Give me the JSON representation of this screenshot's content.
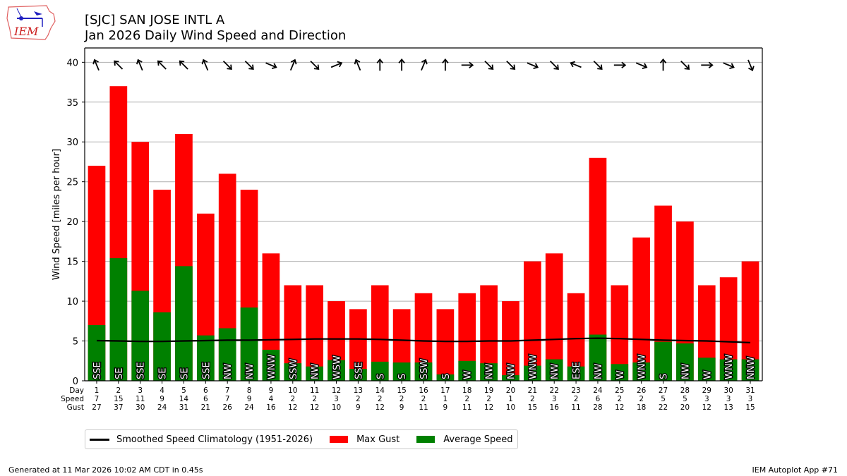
{
  "header": {
    "logo_text": "IEM",
    "title_line1": "[SJC] SAN JOSE INTL A",
    "title_line2": "Jan 2026 Daily Wind Speed and Direction"
  },
  "footer": {
    "generated": "Generated at 11 Mar 2026 10:02 AM CDT in 0.45s",
    "app": "IEM Autoplot App #71"
  },
  "legend": {
    "climatology": "Smoothed Speed Climatology (1951-2026)",
    "gust": "Max Gust",
    "average": "Average Speed"
  },
  "colors": {
    "gust": "#ff0000",
    "average": "#008000",
    "climatology": "#000000",
    "grid": "#b0b0b0"
  },
  "chart_data": {
    "type": "bar",
    "title": "[SJC] SAN JOSE INTL A Jan 2026 Daily Wind Speed and Direction",
    "xlabel": "",
    "ylabel": "Wind Speed [miles per hour]",
    "ylim": [
      0,
      41.8
    ],
    "yticks": [
      0,
      5,
      10,
      15,
      20,
      25,
      30,
      35,
      40
    ],
    "grid": true,
    "legend_position": "bottom",
    "row_labels": [
      "Day",
      "Speed",
      "Gust"
    ],
    "days": [
      1,
      2,
      3,
      4,
      5,
      6,
      7,
      8,
      9,
      10,
      11,
      12,
      13,
      14,
      15,
      16,
      17,
      18,
      19,
      20,
      21,
      22,
      23,
      24,
      25,
      26,
      27,
      28,
      29,
      30,
      31
    ],
    "speed_labels": [
      7,
      15,
      11,
      9,
      14,
      6,
      7,
      9,
      4,
      2,
      2,
      3,
      2,
      2,
      2,
      2,
      1,
      2,
      2,
      1,
      2,
      3,
      2,
      6,
      2,
      2,
      5,
      5,
      3,
      3,
      3
    ],
    "gust_labels": [
      27,
      37,
      30,
      24,
      31,
      21,
      26,
      24,
      16,
      12,
      12,
      10,
      9,
      12,
      9,
      11,
      9,
      11,
      12,
      10,
      15,
      16,
      11,
      28,
      12,
      18,
      22,
      20,
      12,
      13,
      15
    ],
    "directions": [
      "SSE",
      "SE",
      "SSE",
      "SE",
      "SE",
      "SSE",
      "NW",
      "NW",
      "WNW",
      "SSW",
      "NW",
      "WSW",
      "SSE",
      "S",
      "S",
      "SSW",
      "S",
      "W",
      "NW",
      "NW",
      "WNW",
      "NW",
      "ESE",
      "NW",
      "W",
      "WNW",
      "S",
      "NW",
      "W",
      "WNW",
      "NNW"
    ],
    "series": [
      {
        "name": "Max Gust",
        "values": [
          27,
          37,
          30,
          24,
          31,
          21,
          26,
          24,
          16,
          12,
          12,
          10,
          9,
          12,
          9,
          11,
          9,
          11,
          12,
          10,
          15,
          16,
          11,
          28,
          12,
          18,
          22,
          20,
          12,
          13,
          15
        ]
      },
      {
        "name": "Average Speed",
        "values": [
          7.0,
          15.4,
          11.3,
          8.6,
          14.4,
          5.7,
          6.6,
          9.2,
          3.9,
          2.2,
          1.8,
          2.6,
          1.5,
          2.4,
          2.3,
          2.3,
          0.8,
          2.5,
          2.2,
          0.7,
          1.9,
          2.7,
          1.8,
          5.8,
          2.1,
          2.3,
          4.9,
          4.7,
          2.9,
          2.7,
          2.7
        ]
      },
      {
        "name": "Smoothed Speed Climatology (1951-2026)",
        "values": [
          5.05,
          5.0,
          4.95,
          4.95,
          5.0,
          5.05,
          5.1,
          5.1,
          5.15,
          5.2,
          5.25,
          5.25,
          5.25,
          5.2,
          5.1,
          5.0,
          4.95,
          4.95,
          5.0,
          5.0,
          5.1,
          5.2,
          5.3,
          5.35,
          5.3,
          5.2,
          5.1,
          5.05,
          5.0,
          4.9,
          4.8
        ]
      }
    ]
  }
}
